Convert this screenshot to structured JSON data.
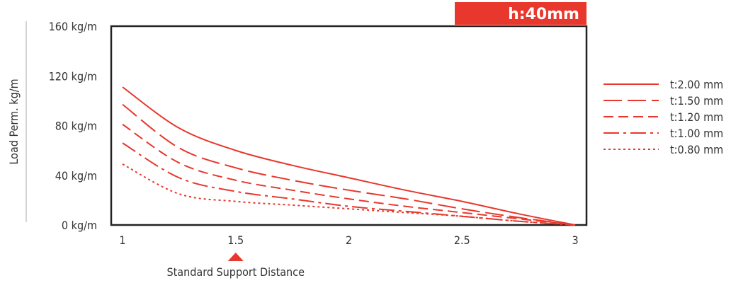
{
  "chart_data": {
    "type": "line",
    "badge": "h:40mm",
    "ylabel": "Load Perm. kg/m",
    "xlabel": "Standard Support Distance",
    "x": [
      1,
      1.25,
      1.5,
      1.75,
      2,
      2.25,
      2.5,
      2.75,
      3
    ],
    "xticks": [
      "1",
      "1.5",
      "2",
      "2.5",
      "3"
    ],
    "xtick_values": [
      1,
      1.5,
      2,
      2.5,
      3
    ],
    "yticks": [
      "0 kg/m",
      "40 kg/m",
      "80 kg/m",
      "120 kg/m",
      "160 kg/m"
    ],
    "ytick_values": [
      0,
      40,
      80,
      120,
      160
    ],
    "xlim": [
      0.95,
      3.05
    ],
    "ylim": [
      0,
      160
    ],
    "marker_x": 1.5,
    "line_color": "#e8372c",
    "series": [
      {
        "name": "t:2.00 mm",
        "dash": "solid",
        "values": [
          111,
          78,
          60,
          48,
          38,
          28,
          19,
          9,
          0
        ]
      },
      {
        "name": "t:1.50 mm",
        "dash": "long-dash",
        "values": [
          97,
          62,
          46,
          36,
          28,
          21,
          13,
          6,
          0
        ]
      },
      {
        "name": "t:1.20 mm",
        "dash": "dash",
        "values": [
          81,
          50,
          36,
          28,
          21,
          15,
          10,
          5,
          0
        ]
      },
      {
        "name": "t:1.00 mm",
        "dash": "dash-dot",
        "values": [
          66,
          38,
          27,
          21,
          15,
          11,
          7,
          3,
          0
        ]
      },
      {
        "name": "t:0.80 mm",
        "dash": "dotted",
        "values": [
          49,
          25,
          19,
          16,
          13,
          10,
          7,
          3,
          0
        ]
      }
    ]
  }
}
